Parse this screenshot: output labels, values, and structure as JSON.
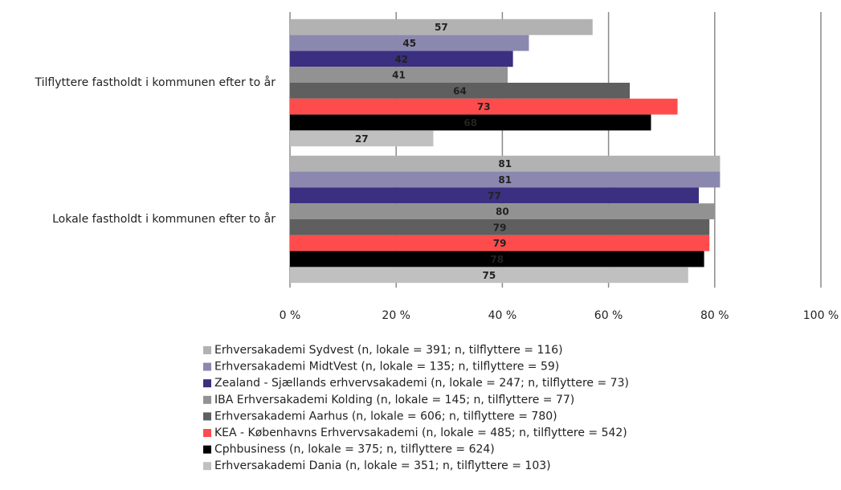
{
  "chart_data": {
    "type": "hbar",
    "categories": [
      "Tilflyttere fastholdt i kommunen efter to år",
      "Lokale fastholdt i kommunen efter to år"
    ],
    "series": [
      {
        "name": "Erhversakademi Sydvest (n, lokale = 391; n, tilflyttere = 116)",
        "color": "#b2b2b2",
        "values": [
          57,
          81
        ]
      },
      {
        "name": "Erhversakademi MidtVest (n, lokale = 135; n, tilflyttere = 59)",
        "color": "#8b88b0",
        "values": [
          45,
          81
        ]
      },
      {
        "name": "Zealand - Sjællands erhvervsakademi (n, lokale = 247; n, tilflyttere = 73)",
        "color": "#3a2f80",
        "values": [
          42,
          77
        ]
      },
      {
        "name": "IBA Erhversakademi Kolding (n, lokale = 145; n, tilflyttere = 77)",
        "color": "#929292",
        "values": [
          41,
          80
        ]
      },
      {
        "name": "Erhversakademi Aarhus (n, lokale = 606; n, tilflyttere = 780)",
        "color": "#5f5f5f",
        "values": [
          64,
          79
        ]
      },
      {
        "name": "KEA - Københavns Erhvervsakademi (n, lokale = 485; n, tilflyttere = 542)",
        "color": "#fe4c4c",
        "values": [
          73,
          79
        ]
      },
      {
        "name": "Cphbusiness (n, lokale = 375; n, tilflyttere = 624)",
        "color": "#000000",
        "values": [
          68,
          78
        ]
      },
      {
        "name": "Erhversakademi Dania (n, lokale = 351; n, tilflyttere = 103)",
        "color": "#c0c0c0",
        "values": [
          27,
          75
        ]
      }
    ],
    "xlim": [
      0,
      100
    ],
    "xticks": [
      {
        "value": 0,
        "label": "0 %"
      },
      {
        "value": 20,
        "label": "20 %"
      },
      {
        "value": 40,
        "label": "40 %"
      },
      {
        "value": 60,
        "label": "60 %"
      },
      {
        "value": 80,
        "label": "80 %"
      },
      {
        "value": 100,
        "label": "100 %"
      }
    ],
    "grid": true,
    "legend": "bottom"
  }
}
